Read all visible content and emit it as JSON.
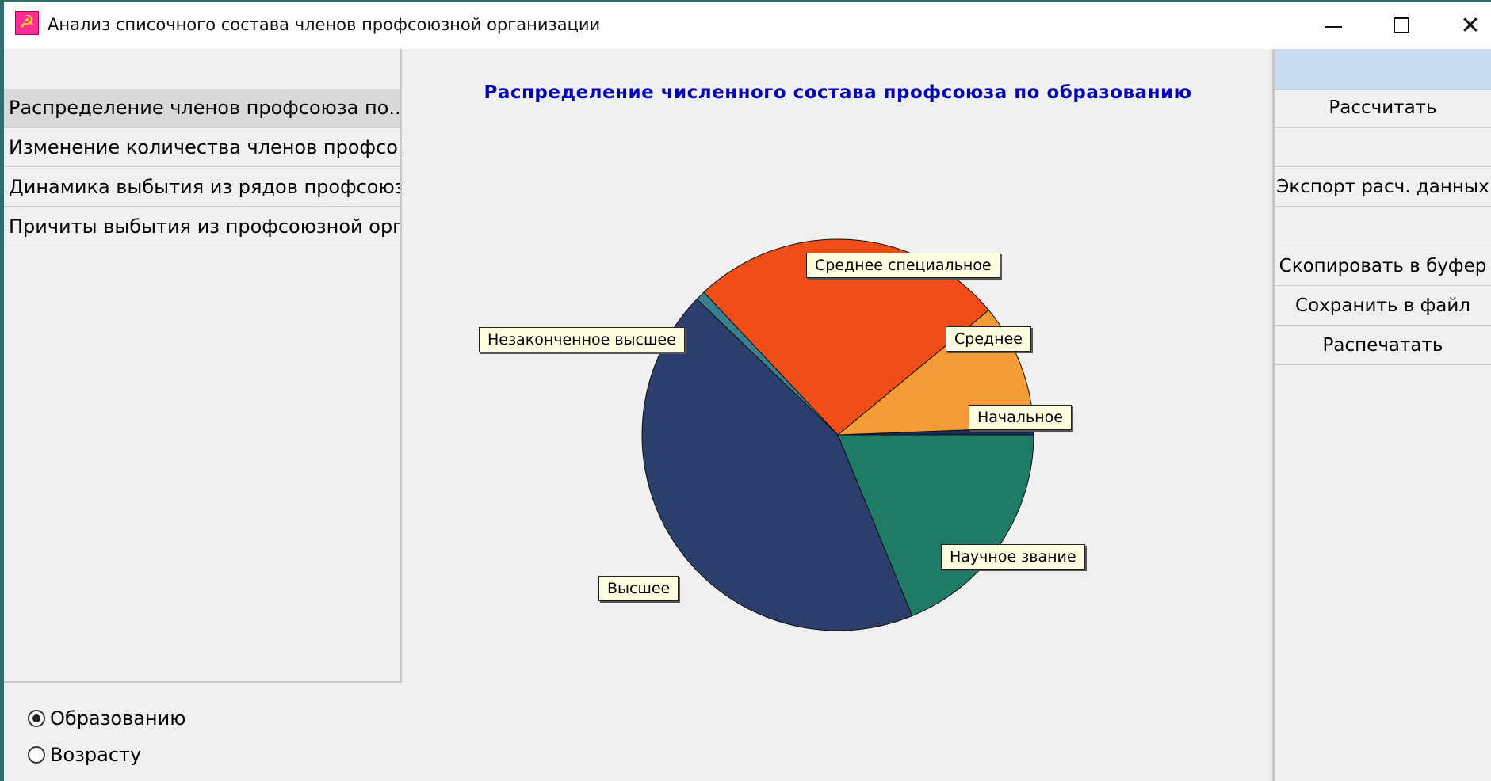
{
  "window": {
    "title": "Анализ списочного состава членов профсоюзной организации",
    "icon": "hammer-sickle-icon"
  },
  "sidebar": {
    "items": [
      {
        "label": "Распределение членов профсоюза по...",
        "selected": true
      },
      {
        "label": "Изменение количества членов профсоюза",
        "selected": false
      },
      {
        "label": "Динамика выбытия из рядов профсоюза",
        "selected": false
      },
      {
        "label": "Причиты выбытия из профсоюзной орг.",
        "selected": false
      }
    ]
  },
  "grouping": {
    "options": [
      {
        "label": "Образованию",
        "checked": true
      },
      {
        "label": "Возрасту",
        "checked": false
      }
    ]
  },
  "actions": {
    "calculate": "Рассчитать",
    "export": "Экспорт расч. данных",
    "copy": "Скопировать в буфер",
    "save": "Сохранить в файл",
    "print": "Распечатать"
  },
  "chart_data": {
    "type": "pie",
    "title": "Распределение численного состава профсоюза по образованию",
    "slices": [
      {
        "label": "Начальное",
        "value": 0.6,
        "color": "#1a2a55"
      },
      {
        "label": "Среднее",
        "value": 10.4,
        "color": "#f39c35"
      },
      {
        "label": "Среднее специальное",
        "value": 26.0,
        "color": "#f04e16"
      },
      {
        "label": "Незаконченное высшее",
        "value": 0.8,
        "color": "#3a7f8f"
      },
      {
        "label": "Высшее",
        "value": 43.4,
        "color": "#2c3e6b"
      },
      {
        "label": "Научное звание",
        "value": 18.8,
        "color": "#1e7b66"
      }
    ]
  }
}
